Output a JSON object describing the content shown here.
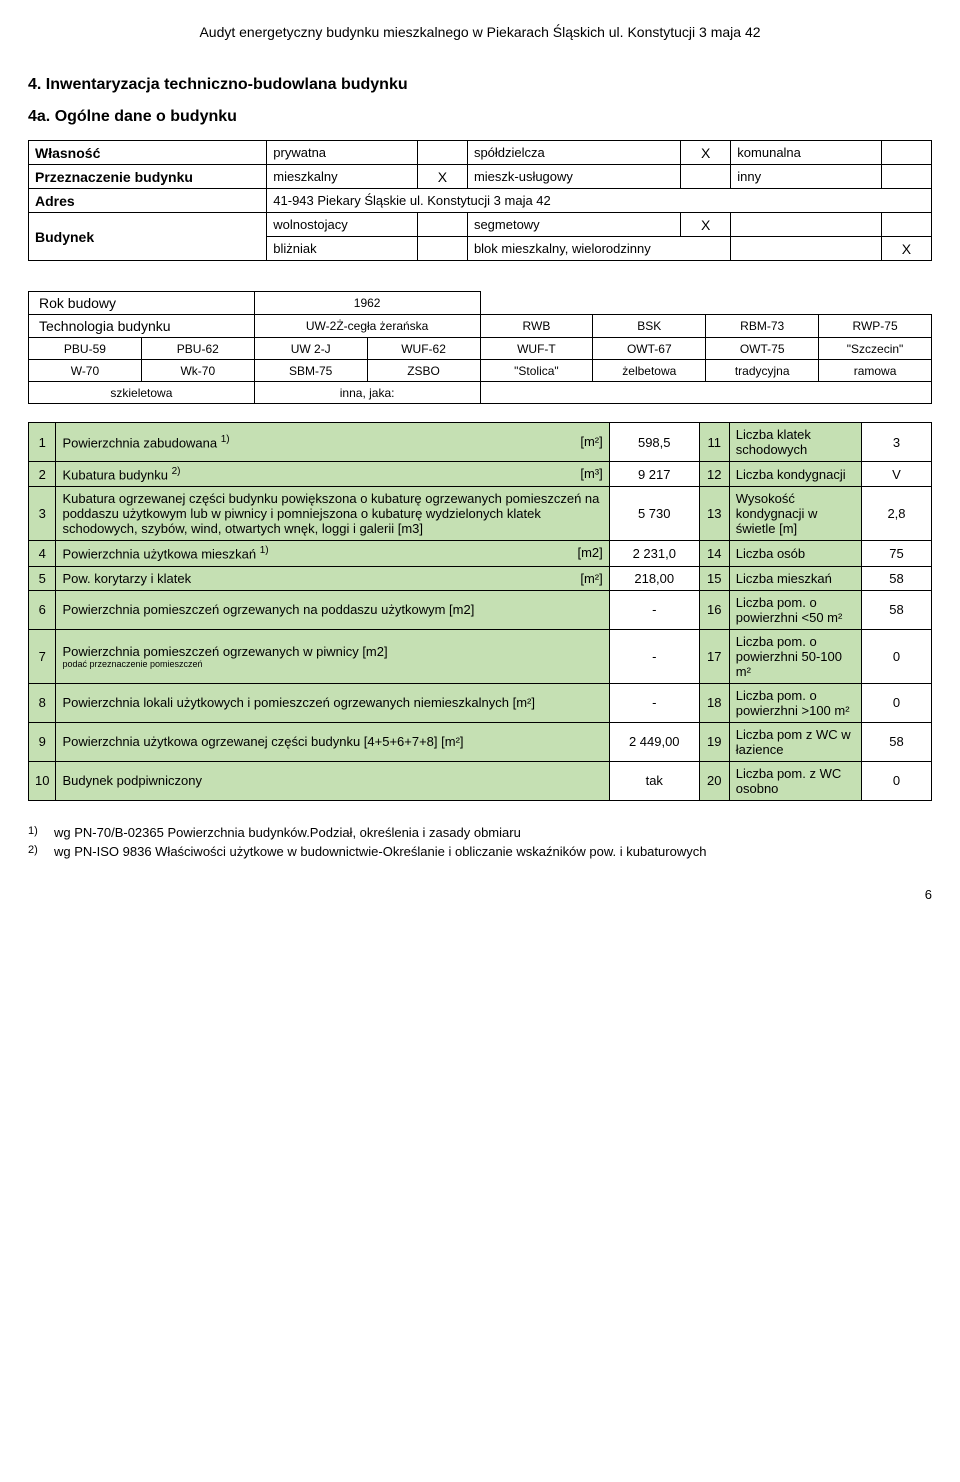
{
  "header": "Audyt energetyczny budynku mieszkalnego w Piekarach Śląskich  ul. Konstytucji 3 maja 42",
  "sectionTitle": "4. Inwentaryzacja techniczno-budowlana budynku",
  "subTitle": "4a. Ogólne dane o budynku",
  "tableA": {
    "r1": {
      "label": "Własność",
      "c1": "prywatna",
      "c2": "",
      "c3": "spółdzielcza",
      "c4": "X",
      "c5": "komunalna",
      "c6": ""
    },
    "r2": {
      "label": "Przeznaczenie budynku",
      "c1": "mieszkalny",
      "c2": "X",
      "c3": "mieszk-usługowy",
      "c4": "",
      "c5": "inny",
      "c6": ""
    },
    "r3": {
      "label": "Adres",
      "c1": "41-943 Piekary Śląskie ul. Konstytucji 3 maja 42"
    },
    "r4a": {
      "label": "Budynek",
      "c1": "wolnostojacy",
      "c2": "",
      "c3": "segmetowy",
      "c4": "X",
      "c5": "",
      "c6": ""
    },
    "r4b": {
      "c1": "bliżniak",
      "c2": "",
      "c3": "blok mieszkalny, wielorodzinny",
      "c4": "",
      "c5": "",
      "c6": "X"
    }
  },
  "tableB": {
    "r1": {
      "c1": "Rok budowy",
      "c2": "1962"
    },
    "r2": {
      "c1": "Technologia budynku",
      "c2": "UW-2Ż-cegła żerańska",
      "c3": "RWB",
      "c4": "BSK",
      "c5": "RBM-73",
      "c6": "RWP-75"
    },
    "r3": {
      "c1": "PBU-59",
      "c2": "PBU-62",
      "c3": "UW 2-J",
      "c4": "WUF-62",
      "c5": "WUF-T",
      "c6": "OWT-67",
      "c7": "OWT-75",
      "c8": "\"Szczecin\""
    },
    "r4": {
      "c1": "W-70",
      "c2": "Wk-70",
      "c3": "SBM-75",
      "c4": "ZSBO",
      "c5": "\"Stolica\"",
      "c6": "żelbetowa",
      "c7": "tradycyjna",
      "c8": "ramowa"
    },
    "r5": {
      "c1": "szkieletowa",
      "c2": "inna, jaka:"
    }
  },
  "tableC": {
    "rows": [
      {
        "n": "1",
        "desc": "Powierzchnia zabudowana ",
        "sup": "1)",
        "unit": "[m²]",
        "val": "598,5",
        "rn": "11",
        "rdesc": "Liczba klatek schodowych",
        "rval": "3"
      },
      {
        "n": "2",
        "desc": "Kubatura budynku ",
        "sup": "2)",
        "unit": "[m³]",
        "val": "9 217",
        "rn": "12",
        "rdesc": "Liczba kondygnacji",
        "rval": "V"
      },
      {
        "n": "3",
        "desc": "Kubatura ogrzewanej części budynku powiększona o kubaturę ogrzewanych pomieszczeń na poddaszu użytkowym lub w piwnicy i pomniejszona o kubaturę wydzielonych klatek schodowych, szybów, wind, otwartych wnęk, loggi i galerii [m3]",
        "sup": "",
        "unit": "",
        "val": "5 730",
        "rn": "13",
        "rdesc": "Wysokość kondygnacji w świetle      [m]",
        "rval": "2,8"
      },
      {
        "n": "4",
        "desc": "Powierzchnia użytkowa mieszkań ",
        "sup": "1)",
        "unit": "[m2]",
        "val": "2 231,0",
        "rn": "14",
        "rdesc": "Liczba osób",
        "rval": "75"
      },
      {
        "n": "5",
        "desc": "Pow. korytarzy i klatek",
        "sup": "",
        "unit": "[m²]",
        "val": "218,00",
        "rn": "15",
        "rdesc": "Liczba mieszkań",
        "rval": "58"
      },
      {
        "n": "6",
        "desc": "Powierzchnia pomieszczeń ogrzewanych na poddaszu użytkowym                          [m2]",
        "sup": "",
        "unit": "",
        "val": "-",
        "rn": "16",
        "rdesc": "Liczba pom. o powierzhni <50 m²",
        "rval": "58"
      },
      {
        "n": "7",
        "desc": "Powierzchnia pomieszczeń ogrzewanych w piwnicy                                                  [m2]",
        "sup": "",
        "unit": "",
        "small": "podać przeznaczenie pomieszczeń",
        "val": "-",
        "rn": "17",
        "rdesc": "Liczba pom. o powierzhni 50-100 m²",
        "rval": "0"
      },
      {
        "n": "8",
        "desc": "Powierzchnia  lokali użytkowych i pomieszczeń ogrzewanych niemieszkalnych [m²]",
        "sup": "",
        "unit": "",
        "val": "-",
        "rn": "18",
        "rdesc": "Liczba pom. o powierzhni >100 m²",
        "rval": "0"
      },
      {
        "n": "9",
        "desc": "Powierzchnia użytkowa ogrzewanej części budynku  [4+5+6+7+8]                    [m²]",
        "sup": "",
        "unit": "",
        "val": "2 449,00",
        "rn": "19",
        "rdesc": "Liczba pom z WC w łazience",
        "rval": "58"
      },
      {
        "n": "10",
        "desc": "Budynek podpiwniczony",
        "sup": "",
        "unit": "",
        "val": "tak",
        "rn": "20",
        "rdesc": "Liczba pom. z WC osobno",
        "rval": "0"
      }
    ]
  },
  "footnotes": {
    "f1": {
      "idx": "1)",
      "text": "wg PN-70/B-02365 Powierzchnia budynków.Podział, określenia i zasady obmiaru"
    },
    "f2": {
      "idx": "2)",
      "text": "wg PN-ISO 9836 Właściwości użytkowe w budownictwie-Określanie i obliczanie wskaźników pow. i kubaturowych"
    }
  },
  "pageNum": "6",
  "colors": {
    "greenFill": "#c5e0b3",
    "border": "#000000",
    "text": "#000000",
    "bg": "#ffffff"
  }
}
